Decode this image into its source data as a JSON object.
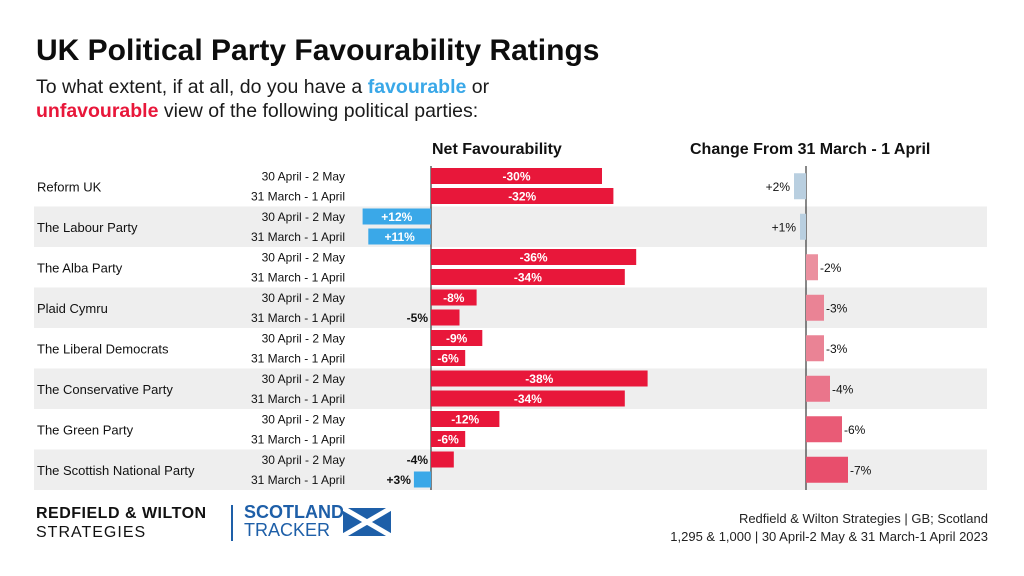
{
  "header": {
    "title": "UK Political Party Favourability Ratings",
    "subtitle_part1": "To what extent, if at all, do you have a",
    "subtitle_favourable": "favourable",
    "subtitle_or": "or",
    "subtitle_unfavourable": "unfavourable",
    "subtitle_part2": "view of the following political parties:"
  },
  "colors": {
    "negative": "#e8173a",
    "positive": "#3aa8e8",
    "change_up": "#b9cfe0",
    "stripe": "#eeeeee"
  },
  "chart_data": {
    "type": "bar",
    "orientation": "horizontal",
    "title": "Net Favourability",
    "change_title": "Change From 31 March - 1 April",
    "periods": [
      "30 April - 2 May",
      "31 March - 1 April"
    ],
    "categories": [
      "Reform UK",
      "The Labour Party",
      "The Alba Party",
      "Plaid Cymru",
      "The Liberal Democrats",
      "The Conservative Party",
      "The Green Party",
      "The Scottish National Party"
    ],
    "series": [
      {
        "name": "30 April - 2 May",
        "values": [
          -30,
          12,
          -36,
          -8,
          -9,
          -38,
          -12,
          -4
        ],
        "labels": [
          "-30%",
          "+12%",
          "-36%",
          "-8%",
          "-9%",
          "-38%",
          "-12%",
          "-4%"
        ]
      },
      {
        "name": "31 March - 1 April",
        "values": [
          -32,
          11,
          -34,
          -5,
          -6,
          -34,
          -6,
          3
        ],
        "labels": [
          "-32%",
          "+11%",
          "-34%",
          "-5%",
          "-6%",
          "-34%",
          "-6%",
          "+3%"
        ]
      }
    ],
    "change": {
      "values": [
        2,
        1,
        -2,
        -3,
        -3,
        -4,
        -6,
        -7
      ],
      "labels": [
        "+2%",
        "+1%",
        "-2%",
        "-3%",
        "-3%",
        "-4%",
        "-6%",
        "-7%"
      ]
    }
  },
  "footer": {
    "rw_line1": "REDFIELD & WILTON",
    "rw_line2": "STRATEGIES",
    "st_line1": "SCOTLAND",
    "st_line2": "TRACKER",
    "source_line1": "Redfield & Wilton Strategies | GB; Scotland",
    "source_line2": "1,295 & 1,000 | 30 April-2 May & 31 March-1 April 2023"
  }
}
